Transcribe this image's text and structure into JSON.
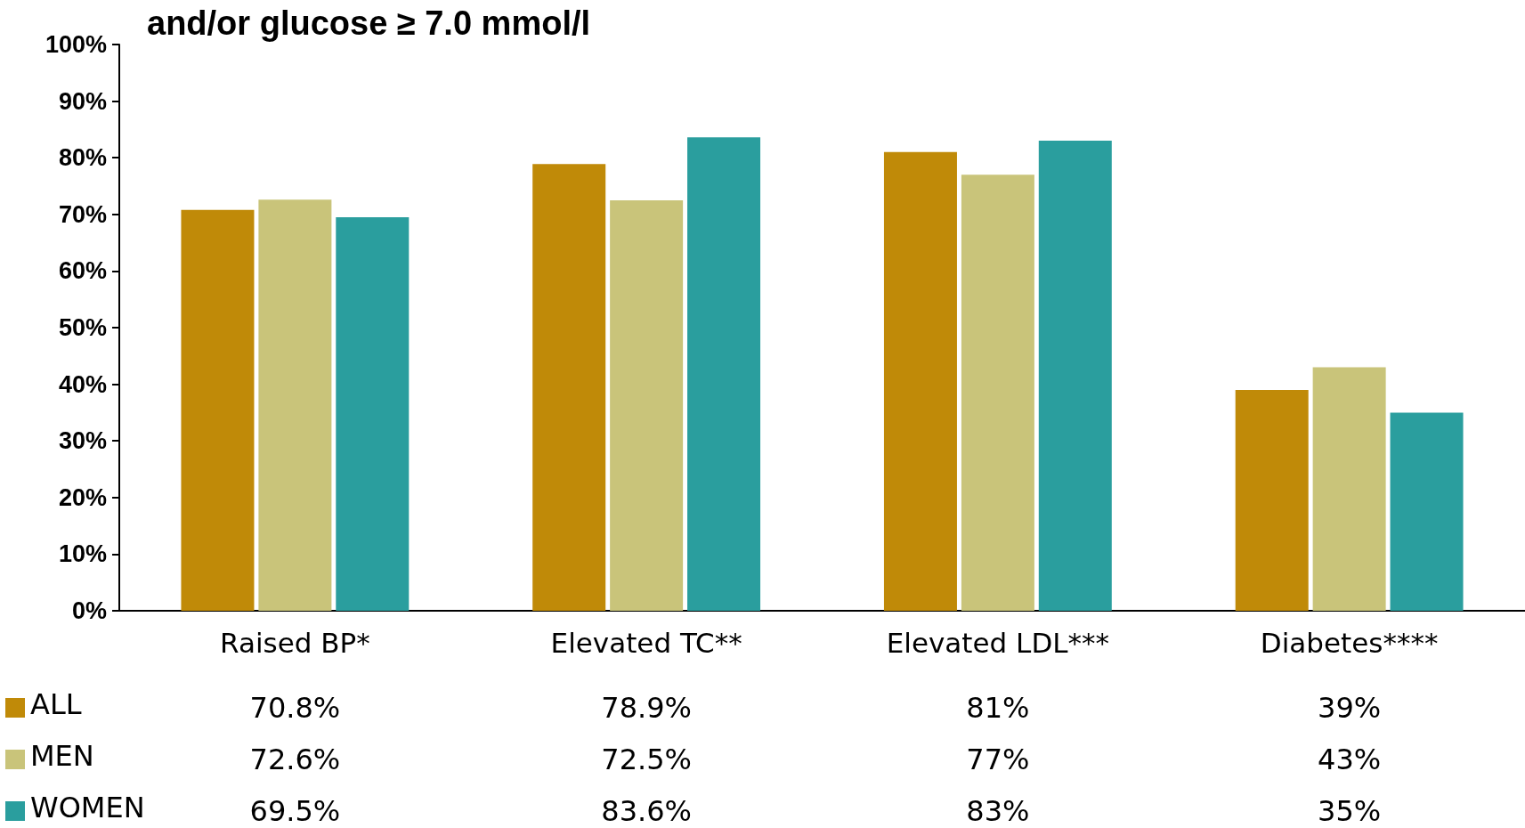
{
  "chart_data": {
    "type": "bar",
    "title": "and/or glucose ≥ 7.0 mmol/l",
    "categories": [
      "Raised BP*",
      "Elevated TC**",
      "Elevated LDL***",
      "Diabetes****"
    ],
    "series": [
      {
        "name": "ALL",
        "color": "#c08a08",
        "values": [
          70.8,
          78.9,
          81,
          39
        ],
        "value_labels": [
          "70.8%",
          "78.9%",
          "81%",
          "39%"
        ]
      },
      {
        "name": "MEN",
        "color": "#c9c47a",
        "values": [
          72.6,
          72.5,
          77,
          43
        ],
        "value_labels": [
          "72.6%",
          "72.5%",
          "77%",
          "43%"
        ]
      },
      {
        "name": "WOMEN",
        "color": "#2a9e9e",
        "values": [
          69.5,
          83.6,
          83,
          35
        ],
        "value_labels": [
          "69.5%",
          "83.6%",
          "83%",
          "35%"
        ]
      }
    ],
    "ylim": [
      0,
      100
    ],
    "yticks": [
      {
        "value": 0,
        "label": "0%"
      },
      {
        "value": 10,
        "label": "10%"
      },
      {
        "value": 20,
        "label": "20%"
      },
      {
        "value": 30,
        "label": "30%"
      },
      {
        "value": 40,
        "label": "40%"
      },
      {
        "value": 50,
        "label": "50%"
      },
      {
        "value": 60,
        "label": "60%"
      },
      {
        "value": 70,
        "label": "70%"
      },
      {
        "value": 80,
        "label": "80%"
      },
      {
        "value": 90,
        "label": "90%"
      },
      {
        "value": 100,
        "label": "100%"
      }
    ],
    "grid": false,
    "legend": "bottom left"
  }
}
